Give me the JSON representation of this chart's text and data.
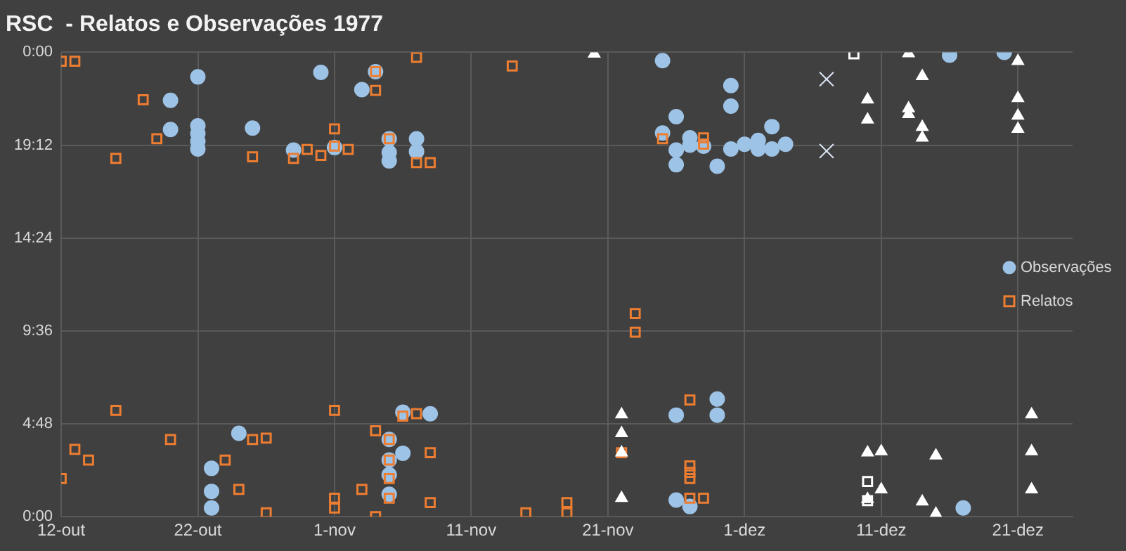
{
  "chart_data": {
    "type": "scatter",
    "title": "RSC  - Relatos e Observações 1977",
    "xlim": [
      "1977-10-12",
      "1977-12-25"
    ],
    "xticks": [
      {
        "value": "1977-10-12",
        "label": "12-out"
      },
      {
        "value": "1977-10-22",
        "label": "22-out"
      },
      {
        "value": "1977-11-01",
        "label": "1-nov"
      },
      {
        "value": "1977-11-11",
        "label": "11-nov"
      },
      {
        "value": "1977-11-21",
        "label": "21-nov"
      },
      {
        "value": "1977-12-01",
        "label": "1-dez"
      },
      {
        "value": "1977-12-11",
        "label": "11-dez"
      },
      {
        "value": "1977-12-21",
        "label": "21-dez"
      }
    ],
    "ylim": [
      0,
      24
    ],
    "yticks": [
      {
        "value": 0,
        "label": "0:00"
      },
      {
        "value": 4.8,
        "label": "4:48"
      },
      {
        "value": 9.6,
        "label": "9:36"
      },
      {
        "value": 14.4,
        "label": "14:24"
      },
      {
        "value": 19.2,
        "label": "19:12"
      },
      {
        "value": 24,
        "label": "0:00"
      }
    ],
    "grid": true,
    "legend": "right",
    "series": [
      {
        "name": "Observações",
        "color": "#9dc3e6",
        "marker": "circle",
        "x": [
          "1977-10-22",
          "1977-10-20",
          "1977-10-20",
          "1977-10-22",
          "1977-10-22",
          "1977-10-22",
          "1977-10-22",
          "1977-10-26",
          "1977-10-31",
          "1977-11-03",
          "1977-10-29",
          "1977-11-01",
          "1977-11-05",
          "1977-11-05",
          "1977-11-05",
          "1977-11-07",
          "1977-11-07",
          "1977-11-04",
          "1977-11-25",
          "1977-11-30",
          "1977-11-30",
          "1977-11-26",
          "1977-11-25",
          "1977-11-26",
          "1977-11-26",
          "1977-11-27",
          "1977-11-27",
          "1977-11-28",
          "1977-11-29",
          "1977-11-30",
          "1977-12-01",
          "1977-12-02",
          "1977-12-02",
          "1977-12-03",
          "1977-12-03",
          "1977-12-04",
          "1977-12-16",
          "1977-12-20",
          "1977-10-25",
          "1977-10-23",
          "1977-10-23",
          "1977-10-23",
          "1977-11-06",
          "1977-11-08",
          "1977-11-06",
          "1977-11-05",
          "1977-11-05",
          "1977-11-05",
          "1977-11-05",
          "1977-11-26",
          "1977-11-29",
          "1977-11-29",
          "1977-11-26",
          "1977-11-27",
          "1977-12-17"
        ],
        "values": [
          22.73,
          21.52,
          20.01,
          20.2,
          19.8,
          19.4,
          19.0,
          20.08,
          22.96,
          22.07,
          18.95,
          19.08,
          19.53,
          18.82,
          18.39,
          19.53,
          18.87,
          23.0,
          23.57,
          22.28,
          21.22,
          20.67,
          19.83,
          18.95,
          18.19,
          19.58,
          19.2,
          19.15,
          18.11,
          19.0,
          19.25,
          19.45,
          19.0,
          20.16,
          19.0,
          19.25,
          23.85,
          24.0,
          4.31,
          2.5,
          1.31,
          0.45,
          5.4,
          5.32,
          3.28,
          3.99,
          2.93,
          2.17,
          1.16,
          5.25,
          6.08,
          5.25,
          0.86,
          0.53,
          0.45
        ]
      },
      {
        "name": "Relatos",
        "color": "#ed7d31",
        "marker": "square",
        "x": [
          "1977-10-12",
          "1977-10-13",
          "1977-10-18",
          "1977-10-19",
          "1977-10-16",
          "1977-10-26",
          "1977-10-29",
          "1977-10-30",
          "1977-10-31",
          "1977-11-01",
          "1977-11-01",
          "1977-11-02",
          "1977-11-04",
          "1977-11-04",
          "1977-11-05",
          "1977-11-07",
          "1977-11-07",
          "1977-11-08",
          "1977-11-14",
          "1977-11-25",
          "1977-11-28",
          "1977-11-28",
          "1977-10-12",
          "1977-10-13",
          "1977-10-14",
          "1977-10-16",
          "1977-10-20",
          "1977-10-24",
          "1977-10-25",
          "1977-10-26",
          "1977-10-27",
          "1977-10-27",
          "1977-11-01",
          "1977-11-01",
          "1977-11-01",
          "1977-11-03",
          "1977-11-04",
          "1977-11-04",
          "1977-11-05",
          "1977-11-05",
          "1977-11-05",
          "1977-11-05",
          "1977-11-06",
          "1977-11-07",
          "1977-11-08",
          "1977-11-08",
          "1977-11-15",
          "1977-11-18",
          "1977-11-18",
          "1977-11-23",
          "1977-11-23",
          "1977-11-22",
          "1977-11-27",
          "1977-11-27",
          "1977-11-27",
          "1977-11-27",
          "1977-11-27",
          "1977-11-28"
        ],
        "values": [
          23.54,
          23.54,
          21.55,
          19.53,
          18.52,
          18.6,
          18.52,
          18.98,
          18.67,
          20.04,
          19.15,
          18.98,
          23.0,
          22.03,
          19.53,
          23.74,
          18.3,
          18.3,
          23.29,
          19.53,
          19.58,
          19.25,
          1.97,
          3.48,
          2.93,
          5.5,
          3.99,
          2.93,
          1.41,
          3.99,
          4.06,
          0.2,
          5.5,
          0.96,
          0.45,
          1.41,
          4.44,
          0,
          3.99,
          2.93,
          1.97,
          0.96,
          5.2,
          5.32,
          3.31,
          0.73,
          0.2,
          0.73,
          0.2,
          10.5,
          9.54,
          3.31,
          6.03,
          2.63,
          2.29,
          1.97,
          0.96,
          0.96
        ]
      },
      {
        "color": "#ffffff",
        "marker": "triangle",
        "x": [
          "1977-11-20",
          "1977-12-10",
          "1977-12-10",
          "1977-12-13",
          "1977-12-14",
          "1977-12-13",
          "1977-12-13",
          "1977-12-14",
          "1977-12-14",
          "1977-12-21",
          "1977-12-21",
          "1977-12-21",
          "1977-12-21",
          "1977-11-22",
          "1977-11-22",
          "1977-11-22",
          "1977-11-22",
          "1977-12-22",
          "1977-12-10",
          "1977-12-11",
          "1977-12-15",
          "1977-12-22",
          "1977-12-11",
          "1977-12-22",
          "1977-12-10",
          "1977-12-14",
          "1977-12-15"
        ],
        "values": [
          23.92,
          21.55,
          20.52,
          23.94,
          22.76,
          21.1,
          20.8,
          20.14,
          19.58,
          23.54,
          21.63,
          20.72,
          20.04,
          5.28,
          4.31,
          3.31,
          0.96,
          5.28,
          3.31,
          3.38,
          3.16,
          3.38,
          1.41,
          1.41,
          0.91,
          0.78,
          0.15
        ]
      },
      {
        "color": "#dae3f3",
        "marker": "cross",
        "x": [
          "1977-12-07",
          "1977-12-07"
        ],
        "values": [
          22.61,
          18.9
        ]
      },
      {
        "color": "#ffffff",
        "marker": "square",
        "x": [
          "1977-12-09",
          "1977-12-10",
          "1977-12-10"
        ],
        "values": [
          23.92,
          1.82,
          0.83
        ]
      }
    ]
  }
}
